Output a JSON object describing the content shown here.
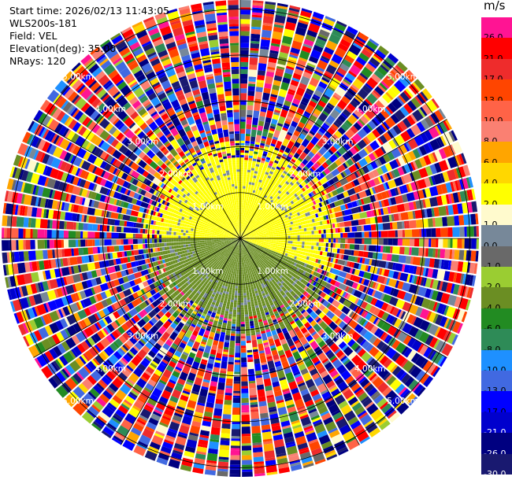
{
  "header": {
    "start_time": "Start time: 2026/02/13 11:43:05",
    "instrument": "WLS200s-181",
    "field": "Field: VEL",
    "elevation": "Elevation(deg): 35.00",
    "nrays": "NRays: 120"
  },
  "colorbar": {
    "unit": "m/s",
    "levels": [
      {
        "label": "26.0",
        "color": "#ff1493"
      },
      {
        "label": "21.0",
        "color": "#ff0000"
      },
      {
        "label": "17.0",
        "color": "#ee2c2c"
      },
      {
        "label": "13.0",
        "color": "#ff4500"
      },
      {
        "label": "10.0",
        "color": "#ff6347"
      },
      {
        "label": "8.0",
        "color": "#fa8072"
      },
      {
        "label": "6.0",
        "color": "#ffa500"
      },
      {
        "label": "4.0",
        "color": "#ffd700"
      },
      {
        "label": "2.0",
        "color": "#ffff00"
      },
      {
        "label": "1.0",
        "color": "#fffacd"
      },
      {
        "label": "0.0",
        "color": "#778899"
      },
      {
        "label": "-1.0",
        "color": "#696969"
      },
      {
        "label": "-2.0",
        "color": "#9acd32"
      },
      {
        "label": "-4.0",
        "color": "#6b8e23"
      },
      {
        "label": "-6.0",
        "color": "#228b22"
      },
      {
        "label": "-8.0",
        "color": "#2e8b57"
      },
      {
        "label": "-10.0",
        "color": "#1e90ff"
      },
      {
        "label": "-13.0",
        "color": "#4169e1"
      },
      {
        "label": "-17.0",
        "color": "#0000ff"
      },
      {
        "label": "-21.0",
        "color": "#0000cd"
      },
      {
        "label": "-26.0",
        "color": "#000080"
      },
      {
        "label": "-30.0",
        "color": "#191970"
      }
    ]
  },
  "chart_data": {
    "type": "ppi",
    "field": "VEL",
    "units": "m/s",
    "elevation_deg": 35.0,
    "nrays": 120,
    "range_rings_km": [
      1.0,
      2.0,
      3.0,
      4.0,
      5.0
    ],
    "range_labels": [
      "1.00km",
      "2.00km",
      "3.00km",
      "4.00km",
      "5.00km"
    ],
    "max_range_km": 5.2,
    "valid_data_region": {
      "inner_core_radius_km": 1.0,
      "clean_radius_km": 1.7,
      "positive_sector_deg_from_north_clockwise": [
        270,
        110
      ],
      "positive_value_ms": 2.0,
      "negative_value_ms": -3.0,
      "transition_value_ms": 0.0
    },
    "noise_beyond_km": 2.1
  }
}
